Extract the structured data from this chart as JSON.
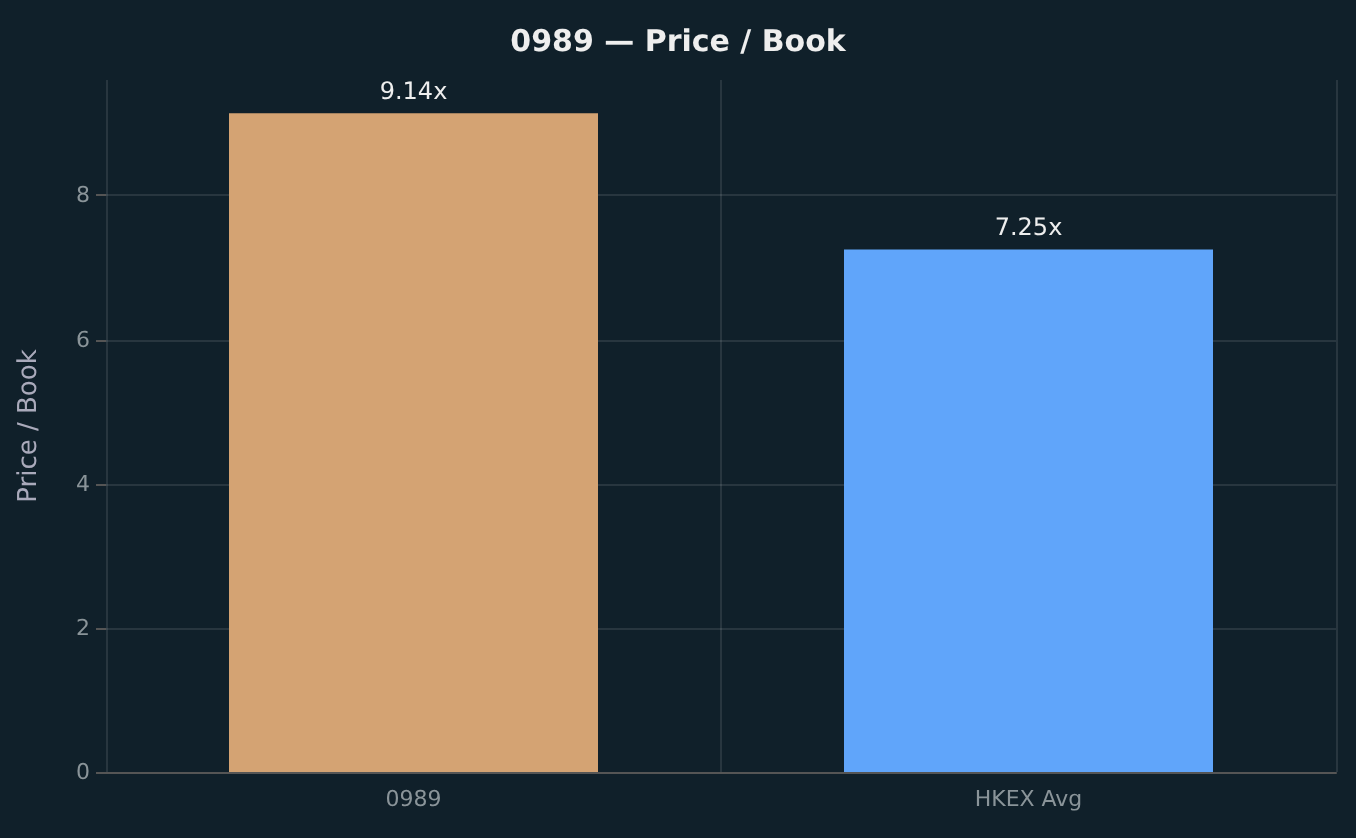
{
  "chart_data": {
    "type": "bar",
    "title": "0989 — Price / Book",
    "ylabel": "Price / Book",
    "categories": [
      "0989",
      "HKEX Avg"
    ],
    "values": [
      9.14,
      7.25
    ],
    "colors": [
      "#d4a373",
      "#60a5fa"
    ],
    "value_labels": [
      "9.14x",
      "7.25x"
    ],
    "ylim": [
      0,
      9.6
    ],
    "yticks": [
      0,
      2,
      4,
      6,
      8
    ],
    "grid": true
  }
}
